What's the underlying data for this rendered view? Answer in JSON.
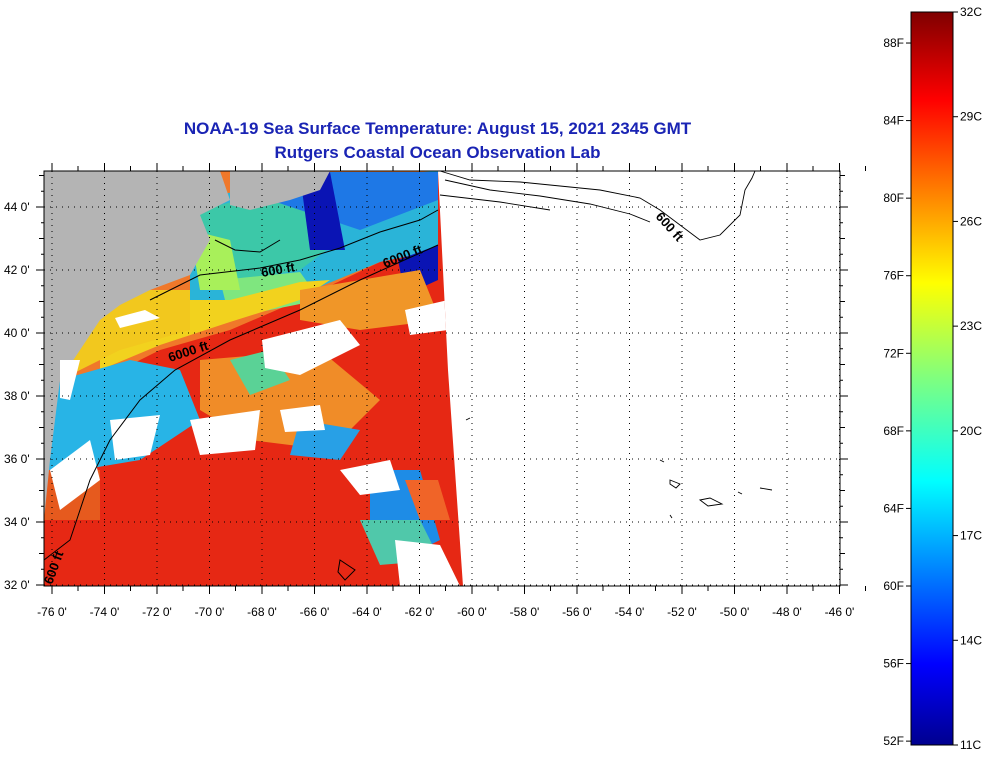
{
  "title": {
    "line1": "NOAA-19 Sea Surface Temperature:  August 15, 2021 2345 GMT",
    "line2": "Rutgers Coastal Ocean Observation Lab"
  },
  "map": {
    "lat_labels": [
      "44 0'",
      "42 0'",
      "40 0'",
      "38 0'",
      "36 0'",
      "34 0'",
      "32 0'"
    ],
    "lon_labels": [
      "-76 0'",
      "-74 0'",
      "-72 0'",
      "-70 0'",
      "-68 0'",
      "-66 0'",
      "-64 0'",
      "-62 0'",
      "-60 0'",
      "-58 0'",
      "-56 0'",
      "-54 0'",
      "-52 0'",
      "-50 0'",
      "-48 0'",
      "-46 0'"
    ],
    "contours": {
      "c600_north": "600 ft",
      "c6000_east": "6000 ft",
      "c6000_west": "6000 ft",
      "c600_east": "600 ft",
      "c600_south": "600 ft"
    },
    "colors": {
      "land": "#b4b4b4",
      "cloud": "#ffffff",
      "warm": "#e62814",
      "cold": "#1432c8"
    }
  },
  "colorbar": {
    "fahrenheit_labels": [
      "88F",
      "84F",
      "80F",
      "76F",
      "72F",
      "68F",
      "64F",
      "60F",
      "56F",
      "52F"
    ],
    "celsius_labels": [
      "32C",
      "29C",
      "26C",
      "23C",
      "20C",
      "17C",
      "14C",
      "11C"
    ],
    "range_c": [
      11,
      32
    ],
    "colormap": "jet"
  }
}
